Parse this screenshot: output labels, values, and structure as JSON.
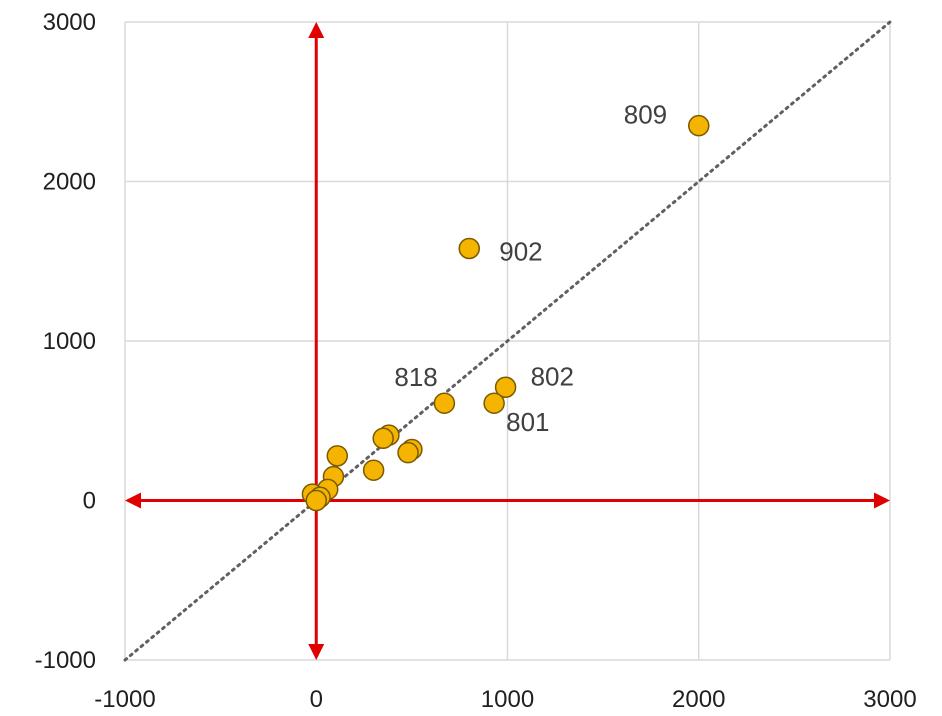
{
  "chart_data": {
    "type": "scatter",
    "title": "",
    "xlabel": "",
    "ylabel": "",
    "xlim": [
      -1000,
      3000
    ],
    "ylim": [
      -1000,
      3000
    ],
    "xticks": [
      -1000,
      0,
      1000,
      2000,
      3000
    ],
    "yticks": [
      -1000,
      0,
      1000,
      2000,
      3000
    ],
    "xtick_labels": [
      "-1000",
      "0",
      "1000",
      "2000",
      "3000"
    ],
    "ytick_labels": [
      "-1000",
      "0",
      "1000",
      "2000",
      "3000"
    ],
    "grid": true,
    "reference_line": {
      "style": "dotted",
      "color": "#606060",
      "from": [
        -1000,
        -1000
      ],
      "to": [
        3000,
        3000
      ]
    },
    "axis_arrows_color": "#e00000",
    "point_color": "#f5b400",
    "point_edge_color": "#7a5a00",
    "points": [
      {
        "x": 2000,
        "y": 2350,
        "label": "809"
      },
      {
        "x": 800,
        "y": 1580,
        "label": "902"
      },
      {
        "x": 670,
        "y": 610,
        "label": "818"
      },
      {
        "x": 990,
        "y": 710,
        "label": "802"
      },
      {
        "x": 930,
        "y": 610,
        "label": "801"
      },
      {
        "x": 380,
        "y": 410,
        "label": ""
      },
      {
        "x": 350,
        "y": 390,
        "label": ""
      },
      {
        "x": 500,
        "y": 320,
        "label": ""
      },
      {
        "x": 480,
        "y": 300,
        "label": ""
      },
      {
        "x": 300,
        "y": 190,
        "label": ""
      },
      {
        "x": 110,
        "y": 280,
        "label": ""
      },
      {
        "x": 90,
        "y": 150,
        "label": ""
      },
      {
        "x": 60,
        "y": 70,
        "label": ""
      },
      {
        "x": -20,
        "y": 40,
        "label": ""
      },
      {
        "x": 20,
        "y": 20,
        "label": ""
      },
      {
        "x": 0,
        "y": 0,
        "label": ""
      }
    ]
  }
}
